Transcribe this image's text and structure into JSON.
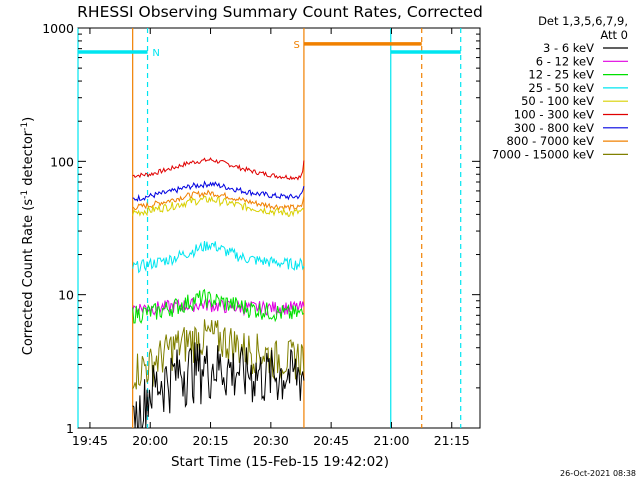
{
  "chart_data": {
    "type": "line",
    "title": "RHESSI Observing Summary Count Rates, Corrected",
    "xlabel": "Start Time (15-Feb-15 19:42:02)",
    "ylabel_main": "Corrected Count Rate (s",
    "ylabel_sup1": "-1",
    "ylabel_mid": " detector",
    "ylabel_sup2": "-1",
    "ylabel_end": ")",
    "y_scale": "log",
    "ylim": [
      1,
      1000
    ],
    "x_unit": "minutes after 19:42:02",
    "xlim": [
      0,
      100
    ],
    "x_ticks": [
      {
        "m": 2.97,
        "label": "19:45"
      },
      {
        "m": 17.97,
        "label": "20:00"
      },
      {
        "m": 32.97,
        "label": "20:15"
      },
      {
        "m": 47.97,
        "label": "20:30"
      },
      {
        "m": 62.97,
        "label": "20:45"
      },
      {
        "m": 77.97,
        "label": "21:00"
      },
      {
        "m": 92.97,
        "label": "21:15"
      }
    ],
    "y_ticks": [
      {
        "v": 1,
        "label": "1"
      },
      {
        "v": 10,
        "label": "10"
      },
      {
        "v": 100,
        "label": "100"
      },
      {
        "v": 1000,
        "label": "1000"
      }
    ],
    "legend": {
      "title1": "Det 1,3,5,6,7,9,",
      "title2": "Att 0",
      "placement": "outside-right-top",
      "entries": [
        {
          "label": "3 - 6 keV",
          "color": "#000000"
        },
        {
          "label": "6 - 12 keV",
          "color": "#e000e0"
        },
        {
          "label": "12 - 25 keV",
          "color": "#00e000"
        },
        {
          "label": "25 - 50 keV",
          "color": "#00e5f0"
        },
        {
          "label": "50 - 100 keV",
          "color": "#d8d000"
        },
        {
          "label": "100 - 300 keV",
          "color": "#e00000"
        },
        {
          "label": "300 - 800 keV",
          "color": "#0000e0"
        },
        {
          "label": "800 - 7000 keV",
          "color": "#f08000"
        },
        {
          "label": "7000 - 15000 keV",
          "color": "#808000"
        }
      ]
    },
    "series": [
      {
        "band": "100 - 300 keV",
        "color": "#e00000",
        "points": [
          [
            13.6,
            78
          ],
          [
            18,
            80
          ],
          [
            23,
            88
          ],
          [
            28,
            98
          ],
          [
            33,
            103
          ],
          [
            37,
            96
          ],
          [
            41,
            88
          ],
          [
            45,
            82
          ],
          [
            49,
            78
          ],
          [
            53,
            76
          ],
          [
            55.5,
            76
          ],
          [
            55.9,
            85
          ],
          [
            56.2,
            98
          ]
        ]
      },
      {
        "band": "300 - 800 keV",
        "color": "#0000e0",
        "points": [
          [
            13.6,
            52
          ],
          [
            18,
            55
          ],
          [
            23,
            59
          ],
          [
            28,
            65
          ],
          [
            33,
            68
          ],
          [
            37,
            64
          ],
          [
            41,
            60
          ],
          [
            45,
            57
          ],
          [
            49,
            55
          ],
          [
            53,
            54
          ],
          [
            55.5,
            55
          ],
          [
            55.9,
            60
          ],
          [
            56.2,
            65
          ]
        ]
      },
      {
        "band": "800 - 7000 keV",
        "color": "#f08000",
        "points": [
          [
            13.6,
            45
          ],
          [
            18,
            47
          ],
          [
            23,
            51
          ],
          [
            28,
            56
          ],
          [
            33,
            58
          ],
          [
            37,
            55
          ],
          [
            41,
            51
          ],
          [
            45,
            48
          ],
          [
            49,
            46
          ],
          [
            53,
            45
          ],
          [
            55.5,
            45
          ],
          [
            55.9,
            50
          ],
          [
            56.2,
            53
          ]
        ]
      },
      {
        "band": "50 - 100 keV",
        "color": "#d8d000",
        "points": [
          [
            13.6,
            41
          ],
          [
            18,
            43
          ],
          [
            23,
            46
          ],
          [
            28,
            50
          ],
          [
            33,
            52
          ],
          [
            37,
            49
          ],
          [
            41,
            46
          ],
          [
            45,
            44
          ],
          [
            49,
            42
          ],
          [
            53,
            41
          ],
          [
            56.2,
            42
          ]
        ]
      },
      {
        "band": "25 - 50 keV",
        "color": "#00e5f0",
        "points": [
          [
            13.6,
            16
          ],
          [
            18,
            17
          ],
          [
            23,
            18.5
          ],
          [
            28,
            21
          ],
          [
            33,
            24
          ],
          [
            37,
            21
          ],
          [
            41,
            19
          ],
          [
            45,
            18
          ],
          [
            49,
            17.5
          ],
          [
            53,
            17
          ],
          [
            56.2,
            17
          ]
        ]
      },
      {
        "band": "6 - 12 keV",
        "color": "#e000e0",
        "points": [
          [
            13.6,
            8
          ],
          [
            20,
            8
          ],
          [
            26,
            8.3
          ],
          [
            31,
            8.5
          ],
          [
            36,
            8.2
          ],
          [
            42,
            8
          ],
          [
            48,
            8
          ],
          [
            52,
            8
          ],
          [
            56.2,
            8
          ]
        ]
      },
      {
        "band": "12 - 25 keV",
        "color": "#00e000",
        "points": [
          [
            13.6,
            7.2
          ],
          [
            20,
            7.5
          ],
          [
            26,
            8.5
          ],
          [
            31,
            9.5
          ],
          [
            36,
            8.8
          ],
          [
            42,
            8
          ],
          [
            48,
            7.5
          ],
          [
            52,
            7.2
          ],
          [
            56.2,
            7.2
          ]
        ]
      },
      {
        "band": "7000 - 15000 keV",
        "color": "#808000",
        "points": [
          [
            13.6,
            2.8
          ],
          [
            18,
            3
          ],
          [
            23,
            4
          ],
          [
            28,
            4.6
          ],
          [
            33,
            5
          ],
          [
            37,
            4.6
          ],
          [
            41,
            4
          ],
          [
            45,
            3.8
          ],
          [
            49,
            3.4
          ],
          [
            53,
            3.4
          ],
          [
            56.2,
            3.6
          ]
        ]
      },
      {
        "band": "3 - 6 keV",
        "color": "#000000",
        "points": [
          [
            13.6,
            1
          ],
          [
            16,
            1.5
          ],
          [
            18,
            2
          ],
          [
            22,
            2.4
          ],
          [
            26,
            2.8
          ],
          [
            30,
            3
          ],
          [
            34,
            3
          ],
          [
            38,
            2.8
          ],
          [
            42,
            2.7
          ],
          [
            46,
            2.6
          ],
          [
            50,
            2.6
          ],
          [
            53,
            2.6
          ],
          [
            56.2,
            2.6
          ]
        ]
      }
    ],
    "markers": [
      {
        "type": "line",
        "m": 0,
        "color": "#00e5f0",
        "dashed": false
      },
      {
        "type": "line",
        "m": 17.3,
        "color": "#00e5f0",
        "dashed": true
      },
      {
        "type": "line",
        "m": 13.6,
        "color": "#f08000",
        "dashed": false
      },
      {
        "type": "line",
        "m": 56.2,
        "color": "#f08000",
        "dashed": false
      },
      {
        "type": "line",
        "m": 77.8,
        "color": "#00e5f0",
        "dashed": false
      },
      {
        "type": "line",
        "m": 85.5,
        "color": "#f08000",
        "dashed": true
      },
      {
        "type": "line",
        "m": 95.2,
        "color": "#00e5f0",
        "dashed": true
      },
      {
        "type": "bar",
        "m1": 0,
        "m2": 17.3,
        "v": 660,
        "color": "#00e5f0"
      },
      {
        "type": "bar",
        "m1": 56.2,
        "m2": 85.5,
        "v": 760,
        "color": "#f08000"
      },
      {
        "type": "bar",
        "m1": 77.8,
        "m2": 95.2,
        "v": 660,
        "color": "#00e5f0"
      }
    ],
    "annotations": [
      {
        "text": "N",
        "m": 18.5,
        "v": 660,
        "color": "#00e5f0"
      },
      {
        "text": "S",
        "m": 53.6,
        "v": 760,
        "color": "#f08000"
      }
    ],
    "footer_timestamp": "26-Oct-2021 08:38"
  }
}
